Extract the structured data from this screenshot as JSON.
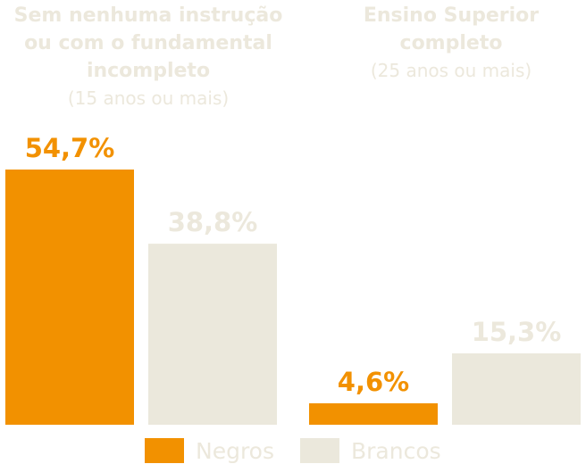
{
  "chart_data": {
    "type": "bar",
    "categories": [
      {
        "title_lines": [
          "Sem nenhuma instrução",
          "ou com o fundamental",
          "incompleto"
        ],
        "subtitle": "(15 anos ou mais)"
      },
      {
        "title_lines": [
          "Ensino Superior",
          "completo"
        ],
        "subtitle": "(25 anos ou mais)"
      }
    ],
    "series": [
      {
        "name": "Negros",
        "color": "#f29100",
        "label_color": "#f29100",
        "values": [
          54.7,
          4.6
        ],
        "labels": [
          "54,7%",
          "4,6%"
        ]
      },
      {
        "name": "Brancos",
        "color": "#ebe8dc",
        "label_color": "#ece8dc",
        "values": [
          38.8,
          15.3
        ],
        "labels": [
          "38,8%",
          "15,3%"
        ]
      }
    ],
    "unit": "%",
    "legend_position": "bottom"
  }
}
